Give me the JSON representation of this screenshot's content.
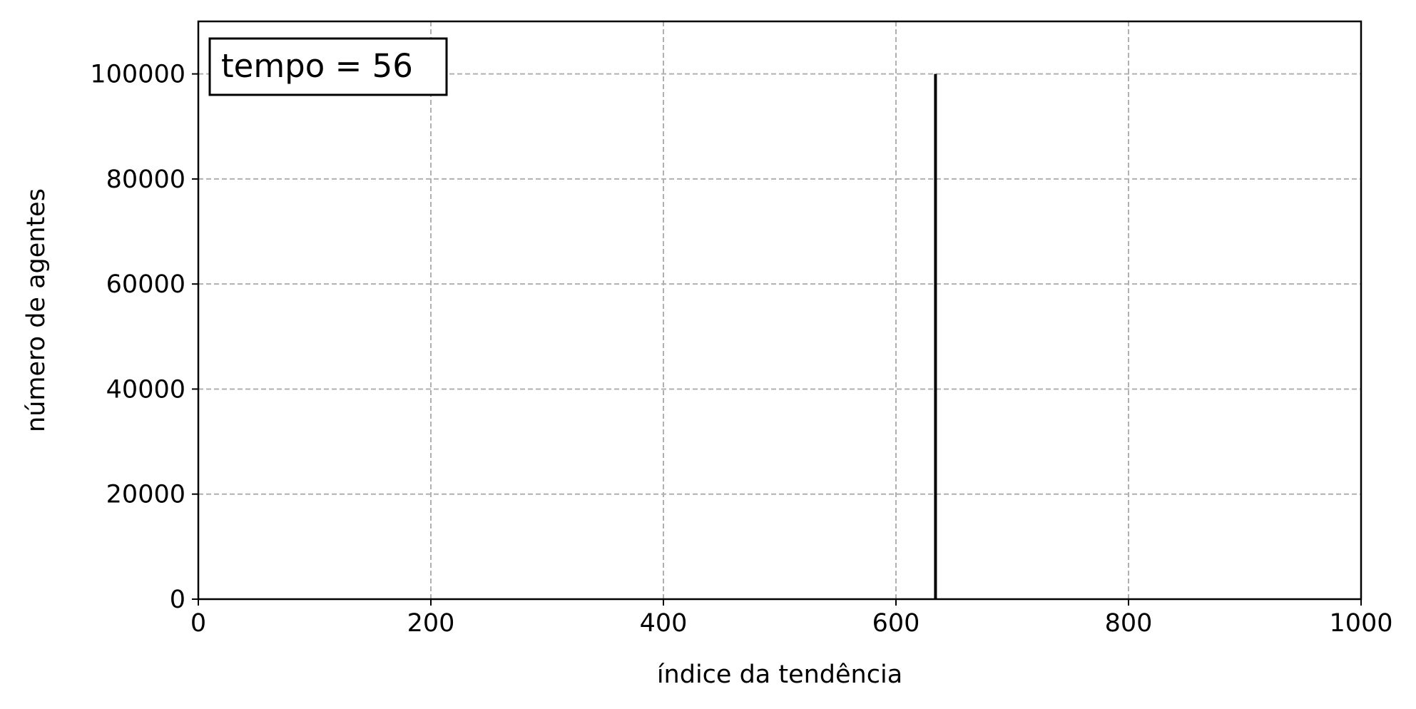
{
  "chart_data": {
    "type": "bar",
    "title": "",
    "xlabel": "índice da tendência",
    "ylabel": "número de agentes",
    "xlim": [
      0,
      1000
    ],
    "ylim": [
      0,
      110000
    ],
    "xticks": [
      0,
      200,
      400,
      600,
      800,
      1000
    ],
    "yticks": [
      0,
      20000,
      40000,
      60000,
      80000,
      100000
    ],
    "xtick_labels": [
      "0",
      "200",
      "400",
      "600",
      "800",
      "1000"
    ],
    "ytick_labels": [
      "0",
      "20000",
      "40000",
      "60000",
      "80000",
      "100000"
    ],
    "grid": true,
    "series": [
      {
        "x": [
          634
        ],
        "values": [
          100000
        ],
        "color": "#000000"
      }
    ],
    "annotation": {
      "text": "tempo = 56",
      "placement": "top-left"
    },
    "colors": {
      "bar": "#000000",
      "grid": "#b0b0b0",
      "axes": "#000000"
    }
  }
}
